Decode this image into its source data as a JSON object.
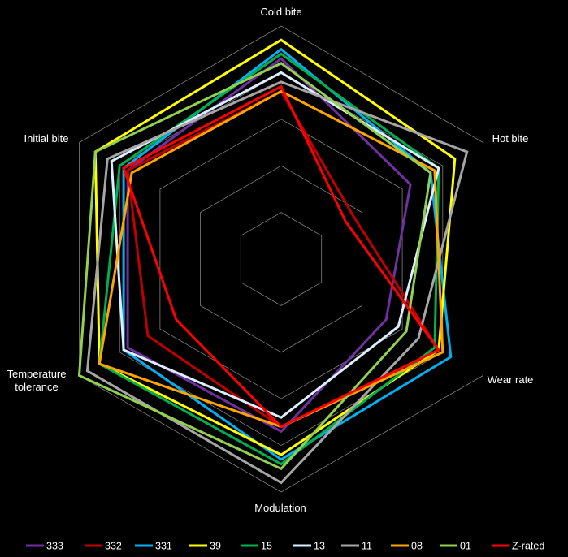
{
  "chart_data": {
    "type": "radar",
    "title": "",
    "axes": [
      "Cold bite",
      "Hot bite",
      "Wear rate",
      "Modulation",
      "Temperature tolerance",
      "Initial bite"
    ],
    "axis_label_lines": [
      [
        "Cold bite"
      ],
      [
        "Hot bite"
      ],
      [
        "Wear rate"
      ],
      [
        "Modulation"
      ],
      [
        "Temperature",
        "tolerance"
      ],
      [
        "Initial bite"
      ]
    ],
    "rlim": [
      0,
      5
    ],
    "grid_levels": 5,
    "grid": true,
    "legend_position": "bottom",
    "series": [
      {
        "name": "333",
        "color": "#7030A0",
        "values": [
          4.3,
          3.2,
          2.6,
          3.7,
          3.8,
          3.8
        ]
      },
      {
        "name": "332",
        "color": "#C00000",
        "values": [
          3.6,
          1.8,
          3.9,
          3.6,
          3.3,
          3.8
        ]
      },
      {
        "name": "331",
        "color": "#00B0F0",
        "values": [
          4.5,
          3.7,
          4.2,
          4.3,
          3.9,
          3.9
        ]
      },
      {
        "name": "39",
        "color": "#FFFF00",
        "values": [
          4.7,
          4.3,
          3.9,
          4.2,
          4.5,
          4.6
        ]
      },
      {
        "name": "15",
        "color": "#00B050",
        "values": [
          4.4,
          3.9,
          3.8,
          4.4,
          4.5,
          4.0
        ]
      },
      {
        "name": "13",
        "color": "#DDEEFF",
        "values": [
          4.0,
          3.9,
          2.9,
          3.4,
          3.9,
          4.2
        ]
      },
      {
        "name": "11",
        "color": "#A6A6A6",
        "values": [
          3.8,
          4.6,
          3.4,
          4.8,
          4.8,
          4.3
        ]
      },
      {
        "name": "08",
        "color": "#FFA500",
        "values": [
          3.6,
          3.8,
          4.0,
          3.6,
          4.5,
          3.7
        ]
      },
      {
        "name": "01",
        "color": "#92D050",
        "values": [
          4.2,
          3.7,
          3.1,
          4.5,
          5.0,
          4.6
        ]
      },
      {
        "name": "Z-rated",
        "color": "#FF0000",
        "values": [
          3.7,
          1.6,
          3.9,
          3.6,
          2.6,
          3.9
        ]
      }
    ]
  }
}
